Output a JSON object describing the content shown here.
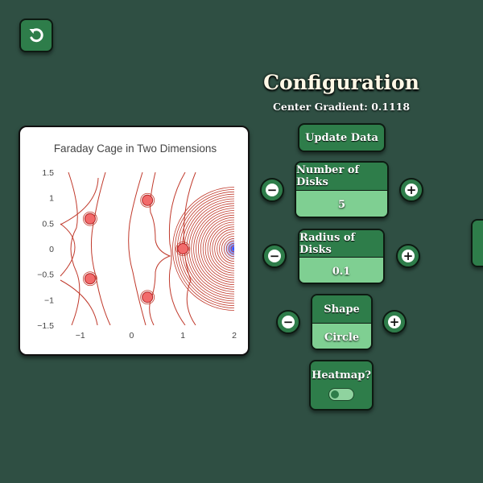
{
  "config": {
    "title": "Configuration",
    "center_gradient_label": "Center Gradient: 0.1118",
    "update_label": "Update Data",
    "num_disks": {
      "label": "Number of Disks",
      "value": "5"
    },
    "radius": {
      "label": "Radius of Disks",
      "value": "0.1"
    },
    "shape": {
      "label": "Shape",
      "value": "Circle"
    },
    "heatmap": {
      "label": "Heatmap?",
      "enabled": false
    },
    "minus_glyph": "−",
    "plus_glyph": "+"
  },
  "colors": {
    "background": "#2f4f43",
    "button": "#2e7d4a",
    "value_field": "#7fcf92",
    "contour": "#c0392b",
    "disk_fill": "#f26b6b",
    "source": "#2c4bff"
  },
  "icons": {
    "back": "rotate-left-icon"
  },
  "chart_data": {
    "type": "contour",
    "title": "Faraday Cage in Two Dimensions",
    "xlabel": "",
    "ylabel": "",
    "xlim": [
      -1.45,
      2
    ],
    "ylim": [
      -1.5,
      1.5
    ],
    "x_ticks": [
      "−1",
      "0",
      "1",
      "2"
    ],
    "y_ticks": [
      "1.5",
      "1",
      "0.5",
      "0",
      "−0.5",
      "−1",
      "−1.5"
    ],
    "disks": [
      {
        "x": 1.0,
        "y": 0.0
      },
      {
        "x": 0.309,
        "y": 0.951
      },
      {
        "x": -0.809,
        "y": 0.588
      },
      {
        "x": -0.809,
        "y": -0.588
      },
      {
        "x": 0.309,
        "y": -0.951
      }
    ],
    "disk_radius": 0.1,
    "source": {
      "x": 2,
      "y": 0
    }
  }
}
